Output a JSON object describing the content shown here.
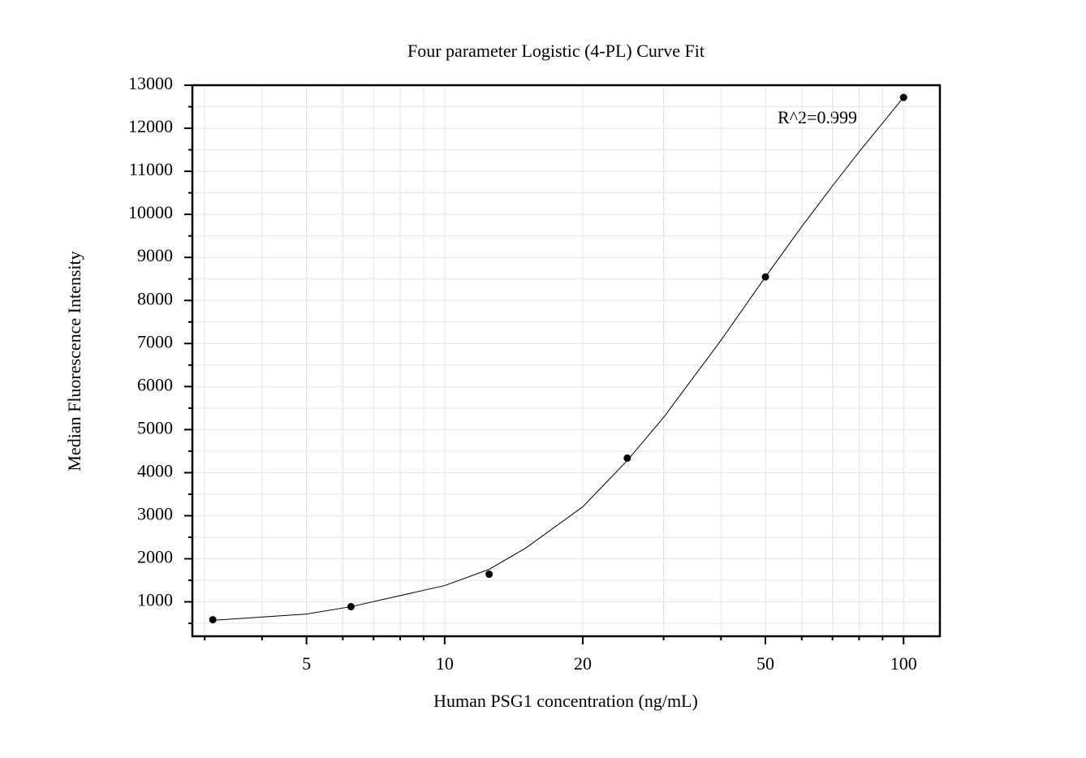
{
  "chart_data": {
    "type": "scatter",
    "title": "Four parameter Logistic (4-PL) Curve Fit",
    "x_label": "Human PSG1 concentration (ng/mL)",
    "y_label": "Median Fluorescence Intensity",
    "annotation": "R^2=0.999",
    "xscale": "log",
    "xlim": [
      2.82,
      120
    ],
    "ylim": [
      200,
      13000
    ],
    "xticks": [
      5,
      10,
      20,
      50,
      100
    ],
    "xminorticks": [
      3,
      4,
      6,
      7,
      8,
      9,
      30,
      40,
      60,
      70,
      80,
      90
    ],
    "yticks": [
      1000,
      2000,
      3000,
      4000,
      5000,
      6000,
      7000,
      8000,
      9000,
      10000,
      11000,
      12000,
      13000
    ],
    "yminorticks": [
      500,
      1500,
      2500,
      3500,
      4500,
      5500,
      6500,
      7500,
      8500,
      9500,
      10500,
      11500,
      12500
    ],
    "grid": true,
    "series": [
      {
        "marker": "dot",
        "color": "#000000",
        "x": [
          3.125,
          6.25,
          12.5,
          25,
          50,
          100
        ],
        "values": [
          585,
          887,
          1642,
          4340,
          8547,
          12717
        ]
      },
      {
        "marker": "line",
        "color": "#000000",
        "x": [
          3.125,
          5,
          6.25,
          10,
          12.5,
          15,
          20,
          25,
          30,
          40,
          50,
          60,
          70,
          80,
          100
        ],
        "values": [
          570,
          717,
          887,
          1377,
          1755,
          2245,
          3208,
          4283,
          5283,
          7075,
          8547,
          9717,
          10660,
          11453,
          12717
        ]
      }
    ]
  }
}
